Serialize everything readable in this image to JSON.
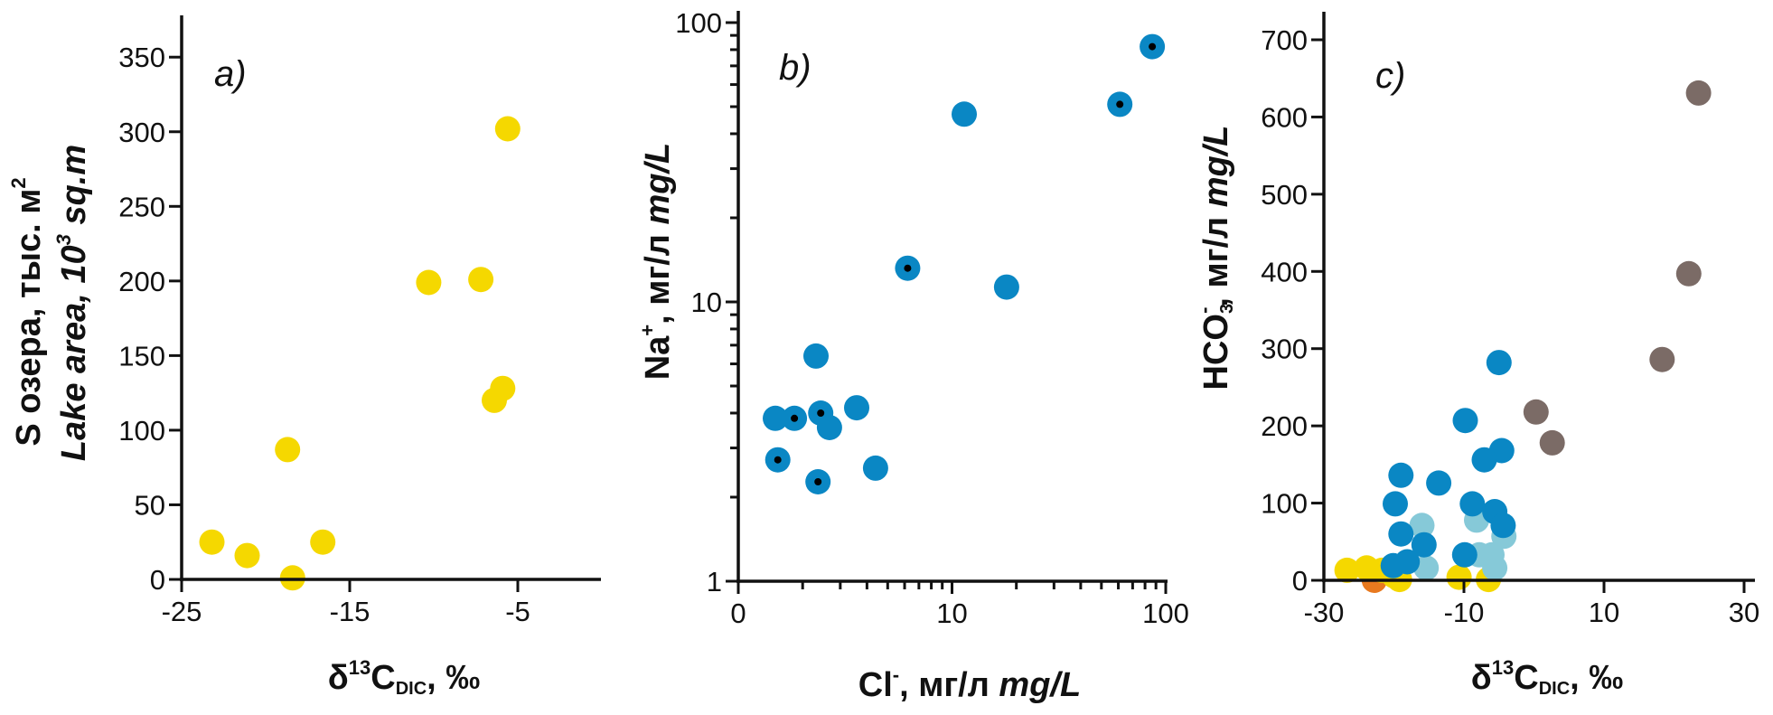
{
  "chart_data": [
    {
      "type": "scatter",
      "panel_label": "a)",
      "x_scale": "linear",
      "y_scale": "linear",
      "xlim": [
        -25,
        0
      ],
      "ylim": [
        0,
        378
      ],
      "x_ticks": [
        {
          "value": -25,
          "label": "-25"
        },
        {
          "value": -15,
          "label": "-15"
        },
        {
          "value": -5,
          "label": "-5"
        }
      ],
      "y_ticks": [
        {
          "value": 0,
          "label": "0"
        },
        {
          "value": 50,
          "label": "50"
        },
        {
          "value": 100,
          "label": "100"
        },
        {
          "value": 150,
          "label": "150"
        },
        {
          "value": 200,
          "label": "200"
        },
        {
          "value": 250,
          "label": "250"
        },
        {
          "value": 300,
          "label": "300"
        },
        {
          "value": 350,
          "label": "350"
        }
      ],
      "xlabel": {
        "symbol": "δ",
        "sup": "13",
        "main": "C",
        "sub": "DIC",
        "unit": ", ‰"
      },
      "ylabel": {
        "line1": "S озера, тыс. м",
        "line1_sup": "2",
        "line2_a": "Lake area, 10",
        "line2_sup": "3",
        "line2_b": " sq.m"
      },
      "grid": false,
      "series": [
        {
          "color": "#f5d800",
          "marker": "filled-circle",
          "points": [
            [
              -5.6,
              302
            ],
            [
              -10.3,
              199
            ],
            [
              -7.2,
              201
            ],
            [
              -5.9,
              128
            ],
            [
              -6.4,
              120
            ],
            [
              -18.7,
              87
            ],
            [
              -23.2,
              25
            ],
            [
              -21.1,
              16
            ],
            [
              -16.6,
              25
            ],
            [
              -18.4,
              1
            ]
          ]
        }
      ]
    },
    {
      "type": "scatter",
      "panel_label": "b)",
      "x_scale": "log",
      "y_scale": "log",
      "xlim": [
        1,
        100
      ],
      "ylim": [
        1,
        108
      ],
      "x_ticks": [
        {
          "value": 1,
          "label": "0"
        },
        {
          "value": 10,
          "label": "10"
        },
        {
          "value": 100,
          "label": "100"
        }
      ],
      "y_ticks": [
        {
          "value": 1,
          "label": "1"
        },
        {
          "value": 10,
          "label": "10"
        },
        {
          "value": 100,
          "label": "100"
        }
      ],
      "xlabel": {
        "main": "Cl",
        "sup": "-",
        "unit": ", мг/л ",
        "unit_en": "mg/L"
      },
      "ylabel": {
        "main": "Na",
        "sup": "+",
        "unit": ", мг/л ",
        "unit_en": "mg/L"
      },
      "grid": false,
      "series": [
        {
          "color": "#0a87c4",
          "marker": "filled-circle-with-black-dot",
          "points": [
            [
              86.5,
              82
            ],
            [
              61,
              51
            ],
            [
              6.2,
              13.2
            ],
            [
              1.83,
              3.83
            ],
            [
              2.43,
              4.0
            ],
            [
              1.53,
              2.72
            ],
            [
              2.36,
              2.27
            ]
          ]
        },
        {
          "color": "#0a87c4",
          "marker": "filled-circle",
          "points": [
            [
              11.4,
              47
            ],
            [
              18,
              11.3
            ],
            [
              2.31,
              6.4
            ],
            [
              1.49,
              3.83
            ],
            [
              2.67,
              3.55
            ],
            [
              3.58,
              4.18
            ],
            [
              4.39,
              2.54
            ]
          ]
        }
      ]
    },
    {
      "type": "scatter",
      "panel_label": "c)",
      "x_scale": "linear",
      "y_scale": "linear",
      "xlim": [
        -30,
        31
      ],
      "ylim": [
        0,
        730
      ],
      "x_ticks": [
        {
          "value": -30,
          "label": "-30"
        },
        {
          "value": -10,
          "label": "-10"
        },
        {
          "value": 10,
          "label": "10"
        },
        {
          "value": 30,
          "label": "30"
        }
      ],
      "y_ticks": [
        {
          "value": 0,
          "label": "0"
        },
        {
          "value": 100,
          "label": "100"
        },
        {
          "value": 200,
          "label": "200"
        },
        {
          "value": 300,
          "label": "300"
        },
        {
          "value": 400,
          "label": "400"
        },
        {
          "value": 500,
          "label": "500"
        },
        {
          "value": 600,
          "label": "600"
        },
        {
          "value": 700,
          "label": "700"
        }
      ],
      "xlabel": {
        "symbol": "δ",
        "sup": "13",
        "main": "C",
        "sub": "DIC",
        "unit": ", ‰"
      },
      "ylabel": {
        "main": "HCO",
        "sub": "3",
        "sup": "-",
        "unit": ", мг/л ",
        "unit_en": "mg/L"
      },
      "grid": false,
      "series": [
        {
          "color": "#e8791f",
          "marker": "filled-circle",
          "points": [
            [
              -22.8,
              0
            ]
          ]
        },
        {
          "color": "#f5d800",
          "marker": "filled-circle",
          "points": [
            [
              -26.7,
              13
            ],
            [
              -23.9,
              16
            ],
            [
              -21.7,
              13
            ],
            [
              -20.0,
              6
            ],
            [
              -19.2,
              1
            ],
            [
              -10.7,
              4
            ],
            [
              -6.5,
              1
            ]
          ]
        },
        {
          "color": "#86c9d8",
          "marker": "filled-circle",
          "points": [
            [
              -16.0,
              71
            ],
            [
              -8.2,
              78
            ],
            [
              -4.3,
              57
            ],
            [
              -7.8,
              33
            ],
            [
              -6.0,
              33
            ],
            [
              -5.6,
              16
            ],
            [
              -15.4,
              16
            ]
          ]
        },
        {
          "color": "#0a87c4",
          "marker": "filled-circle",
          "points": [
            [
              -5.0,
              282
            ],
            [
              -9.8,
              207
            ],
            [
              -4.6,
              168
            ],
            [
              -7.1,
              156
            ],
            [
              -19.0,
              136
            ],
            [
              -13.6,
              126
            ],
            [
              -19.8,
              99
            ],
            [
              -8.8,
              99
            ],
            [
              -19.0,
              60
            ],
            [
              -5.6,
              89
            ],
            [
              -4.4,
              71
            ],
            [
              -15.7,
              46
            ],
            [
              -9.9,
              33
            ],
            [
              -20.1,
              19
            ],
            [
              -18.1,
              24
            ]
          ]
        },
        {
          "color": "#7b6b66",
          "marker": "filled-circle",
          "points": [
            [
              23.5,
              631
            ],
            [
              22.1,
              397
            ],
            [
              18.3,
              286
            ],
            [
              0.3,
              218
            ],
            [
              2.6,
              178
            ]
          ]
        }
      ]
    }
  ]
}
